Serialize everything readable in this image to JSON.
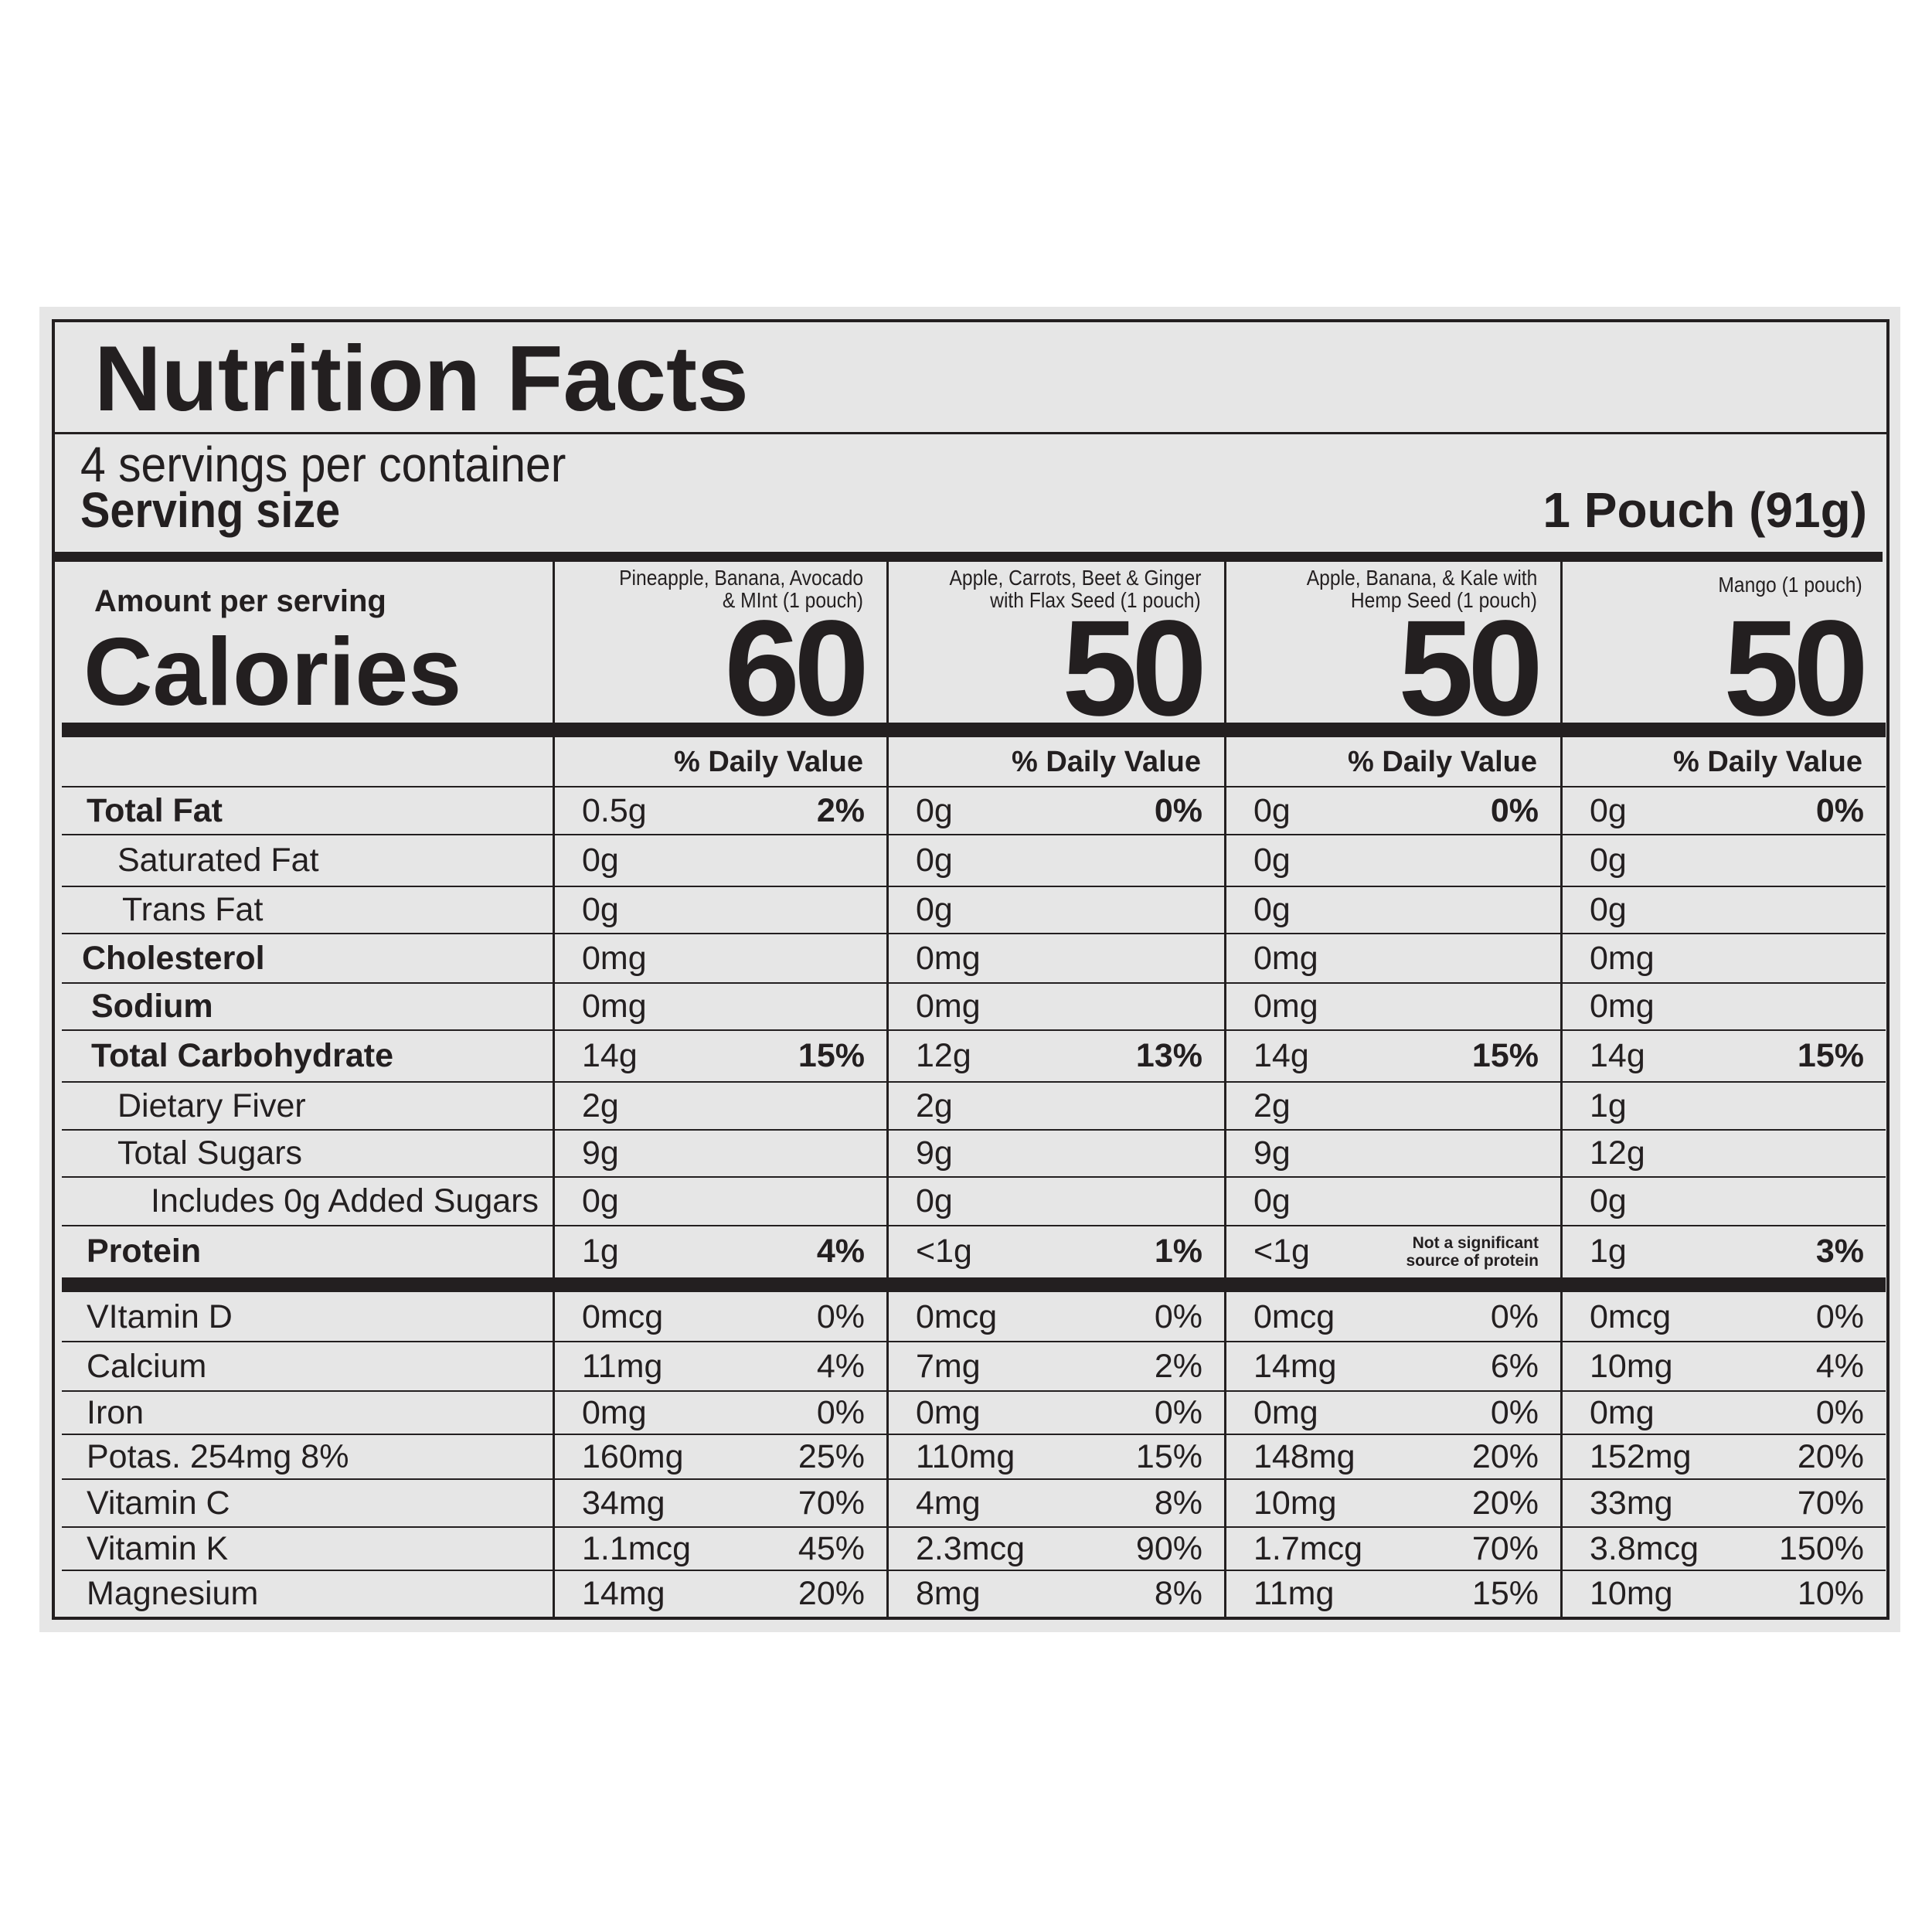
{
  "header": {
    "title": "Nutrition Facts",
    "servings": "4 servings per container",
    "serving_size_label": "Serving size",
    "serving_size_value": "1 Pouch (91g)"
  },
  "amount_label": "Amount per serving",
  "calories_label": "Calories",
  "columns": [
    {
      "name_lines": [
        "Pineapple, Banana, Avocado",
        "& MInt (1 pouch)"
      ],
      "calories": 60,
      "dv_header": "% Daily Value"
    },
    {
      "name_lines": [
        "Apple, Carrots, Beet & Ginger",
        "with Flax Seed (1 pouch)"
      ],
      "calories": 50,
      "dv_header": "% Daily Value"
    },
    {
      "name_lines": [
        "Apple, Banana, & Kale with",
        "Hemp Seed (1 pouch)"
      ],
      "calories": 50,
      "dv_header": "% Daily Value"
    },
    {
      "name_lines": [
        "Mango (1 pouch)"
      ],
      "calories": 50,
      "dv_header": "% Daily Value"
    }
  ],
  "rows": [
    {
      "label": "Total Fat",
      "cells": [
        {
          "amount": "0.5g",
          "dv": "2%"
        },
        {
          "amount": "0g",
          "dv": "0%"
        },
        {
          "amount": "0g",
          "dv": "0%"
        },
        {
          "amount": "0g",
          "dv": "0%"
        }
      ]
    },
    {
      "label": "Saturated Fat",
      "cells": [
        {
          "amount": "0g"
        },
        {
          "amount": "0g"
        },
        {
          "amount": "0g"
        },
        {
          "amount": "0g"
        }
      ]
    },
    {
      "label": "Trans Fat",
      "cells": [
        {
          "amount": "0g"
        },
        {
          "amount": "0g"
        },
        {
          "amount": "0g"
        },
        {
          "amount": "0g"
        }
      ]
    },
    {
      "label": "Cholesterol",
      "cells": [
        {
          "amount": "0mg"
        },
        {
          "amount": "0mg"
        },
        {
          "amount": "0mg"
        },
        {
          "amount": "0mg"
        }
      ]
    },
    {
      "label": "Sodium",
      "cells": [
        {
          "amount": "0mg"
        },
        {
          "amount": "0mg"
        },
        {
          "amount": "0mg"
        },
        {
          "amount": "0mg"
        }
      ]
    },
    {
      "label": "Total Carbohydrate",
      "cells": [
        {
          "amount": "14g",
          "dv": "15%"
        },
        {
          "amount": "12g",
          "dv": "13%"
        },
        {
          "amount": "14g",
          "dv": "15%"
        },
        {
          "amount": "14g",
          "dv": "15%"
        }
      ]
    },
    {
      "label": "Dietary Fiver",
      "cells": [
        {
          "amount": "2g"
        },
        {
          "amount": "2g"
        },
        {
          "amount": "2g"
        },
        {
          "amount": "1g"
        }
      ]
    },
    {
      "label": "Total Sugars",
      "cells": [
        {
          "amount": "9g"
        },
        {
          "amount": "9g"
        },
        {
          "amount": "9g"
        },
        {
          "amount": "12g"
        }
      ]
    },
    {
      "label": "Includes 0g Added Sugars",
      "cells": [
        {
          "amount": "0g"
        },
        {
          "amount": "0g"
        },
        {
          "amount": "0g"
        },
        {
          "amount": "0g"
        }
      ]
    },
    {
      "label": "Protein",
      "cells": [
        {
          "amount": "1g",
          "dv": "4%"
        },
        {
          "amount": "<1g",
          "dv": "1%"
        },
        {
          "amount": "<1g",
          "dv": "Not a significant source of protein"
        },
        {
          "amount": "1g",
          "dv": "3%"
        }
      ]
    },
    {
      "label": "VItamin D",
      "cells": [
        {
          "amount": "0mcg",
          "dv": "0%"
        },
        {
          "amount": "0mcg",
          "dv": "0%"
        },
        {
          "amount": "0mcg",
          "dv": "0%"
        },
        {
          "amount": "0mcg",
          "dv": "0%"
        }
      ]
    },
    {
      "label": "Calcium",
      "cells": [
        {
          "amount": "11mg",
          "dv": "4%"
        },
        {
          "amount": "7mg",
          "dv": "2%"
        },
        {
          "amount": "14mg",
          "dv": "6%"
        },
        {
          "amount": "10mg",
          "dv": "4%"
        }
      ]
    },
    {
      "label": "Iron",
      "cells": [
        {
          "amount": "0mg",
          "dv": "0%"
        },
        {
          "amount": "0mg",
          "dv": "0%"
        },
        {
          "amount": "0mg",
          "dv": "0%"
        },
        {
          "amount": "0mg",
          "dv": "0%"
        }
      ]
    },
    {
      "label": "Potas. 254mg 8%",
      "cells": [
        {
          "amount": "160mg",
          "dv": "25%"
        },
        {
          "amount": "110mg",
          "dv": "15%"
        },
        {
          "amount": "148mg",
          "dv": "20%"
        },
        {
          "amount": "152mg",
          "dv": "20%"
        }
      ]
    },
    {
      "label": "Vitamin C",
      "cells": [
        {
          "amount": "34mg",
          "dv": "70%"
        },
        {
          "amount": "4mg",
          "dv": "8%"
        },
        {
          "amount": "10mg",
          "dv": "20%"
        },
        {
          "amount": "33mg",
          "dv": "70%"
        }
      ]
    },
    {
      "label": "Vitamin K",
      "cells": [
        {
          "amount": "1.1mcg",
          "dv": "45%"
        },
        {
          "amount": "2.3mcg",
          "dv": "90%"
        },
        {
          "amount": "1.7mcg",
          "dv": "70%"
        },
        {
          "amount": "3.8mcg",
          "dv": "150%"
        }
      ]
    },
    {
      "label": "Magnesium",
      "cells": [
        {
          "amount": "14mg",
          "dv": "20%"
        },
        {
          "amount": "8mg",
          "dv": "8%"
        },
        {
          "amount": "11mg",
          "dv": "15%"
        },
        {
          "amount": "10mg",
          "dv": "10%"
        }
      ]
    }
  ]
}
